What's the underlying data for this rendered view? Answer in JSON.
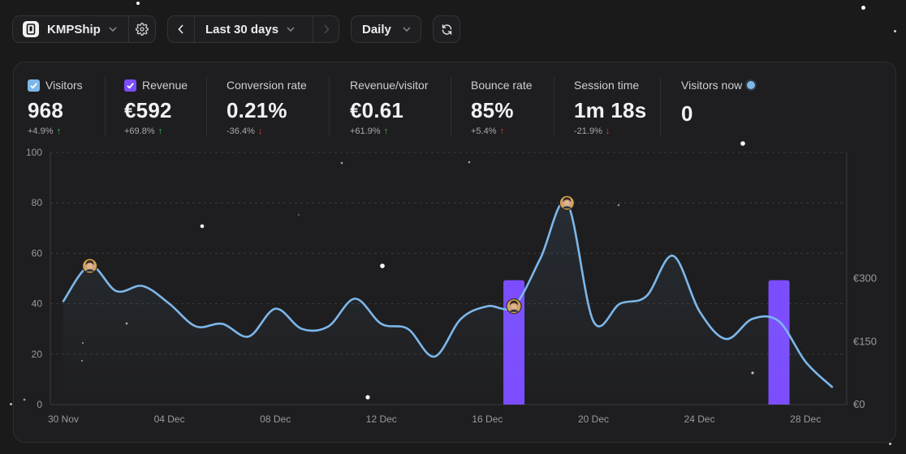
{
  "toolbar": {
    "app_name": "KMPShip",
    "period_label": "Last 30 days",
    "granularity_label": "Daily"
  },
  "metrics": [
    {
      "label": "Visitors",
      "value": "968",
      "change": "+4.9%",
      "direction": "up",
      "checkbox": true,
      "checkbox_color": "#7db7ea"
    },
    {
      "label": "Revenue",
      "value": "€592",
      "change": "+69.8%",
      "direction": "up",
      "checkbox": true,
      "checkbox_color": "#7c4dff"
    },
    {
      "label": "Conversion rate",
      "value": "0.21%",
      "change": "-36.4%",
      "direction": "down"
    },
    {
      "label": "Revenue/visitor",
      "value": "€0.61",
      "change": "+61.9%",
      "direction": "up"
    },
    {
      "label": "Bounce rate",
      "value": "85%",
      "change": "+5.4%",
      "direction": "up-bad"
    },
    {
      "label": "Session time",
      "value": "1m 18s",
      "change": "-21.9%",
      "direction": "down"
    },
    {
      "label": "Visitors now",
      "value": "0",
      "live": true
    }
  ],
  "colors": {
    "visitors_line": "#7db7ea",
    "revenue_bar": "#7c4dff",
    "up": "#3fbf5a",
    "down": "#e0453a"
  },
  "chart_data": {
    "type": "line",
    "y_left_ticks": [
      "100",
      "80",
      "60",
      "40",
      "20",
      "0"
    ],
    "y_right_ticks": [
      "€300",
      "€150",
      "€0"
    ],
    "ylim_left": [
      0,
      100
    ],
    "ylim_right": [
      0,
      600
    ],
    "x_ticks": [
      "30 Nov",
      "04 Dec",
      "08 Dec",
      "12 Dec",
      "16 Dec",
      "20 Dec",
      "24 Dec",
      "28 Dec"
    ],
    "x_tick_days": [
      0,
      4,
      8,
      12,
      16,
      20,
      24,
      28
    ],
    "grid": true,
    "series": [
      {
        "values": [
          {
            "d": 0,
            "v": 41
          },
          {
            "d": 1,
            "v": 55
          },
          {
            "d": 2,
            "v": 45
          },
          {
            "d": 3,
            "v": 47
          },
          {
            "d": 4,
            "v": 40
          },
          {
            "d": 5,
            "v": 31
          },
          {
            "d": 6,
            "v": 32
          },
          {
            "d": 7,
            "v": 27
          },
          {
            "d": 8,
            "v": 38
          },
          {
            "d": 9,
            "v": 30
          },
          {
            "d": 10,
            "v": 31
          },
          {
            "d": 11,
            "v": 42
          },
          {
            "d": 12,
            "v": 32
          },
          {
            "d": 13,
            "v": 30
          },
          {
            "d": 14,
            "v": 19
          },
          {
            "d": 15,
            "v": 34
          },
          {
            "d": 16,
            "v": 39
          },
          {
            "d": 17,
            "v": 39
          },
          {
            "d": 18,
            "v": 58
          },
          {
            "d": 19,
            "v": 80
          },
          {
            "d": 20,
            "v": 33
          },
          {
            "d": 21,
            "v": 40
          },
          {
            "d": 22,
            "v": 43
          },
          {
            "d": 23,
            "v": 59
          },
          {
            "d": 24,
            "v": 37
          },
          {
            "d": 25,
            "v": 26
          },
          {
            "d": 26,
            "v": 34
          },
          {
            "d": 27,
            "v": 33
          },
          {
            "d": 28,
            "v": 17
          },
          {
            "d": 29,
            "v": 7
          }
        ]
      },
      {
        "values": [
          {
            "d": 17,
            "v": 296
          },
          {
            "d": 27,
            "v": 296
          }
        ]
      }
    ],
    "avatars_on_days": [
      1,
      17,
      19
    ]
  }
}
